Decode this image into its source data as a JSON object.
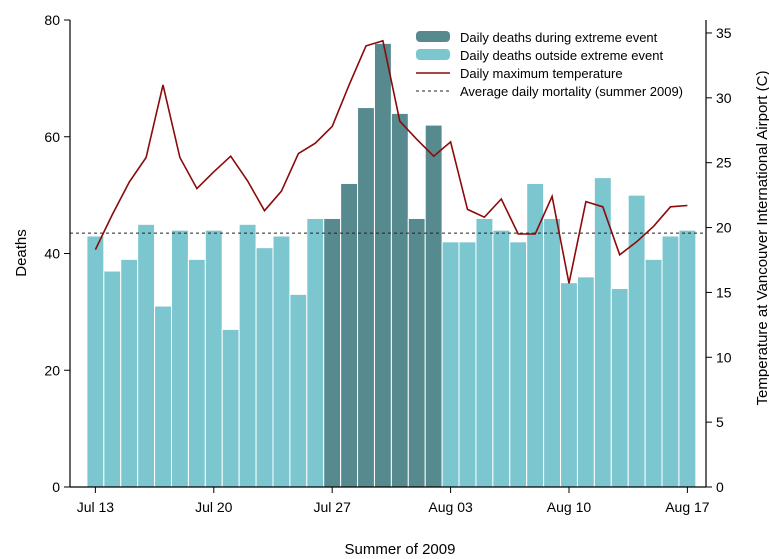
{
  "chart_data": {
    "type": "bar",
    "xlabel": "Summer of 2009",
    "ylabel": "Deaths",
    "y2label": "Temperature at Vancouver International Airport (C)",
    "ylim": [
      0,
      80
    ],
    "y2lim": [
      0,
      36
    ],
    "yticks": [
      0,
      20,
      40,
      60,
      80
    ],
    "y2ticks": [
      0,
      5,
      10,
      15,
      20,
      25,
      30,
      35
    ],
    "x_tick_labels": [
      "Jul 13",
      "Jul 20",
      "Jul 27",
      "Aug 03",
      "Aug 10",
      "Aug 17"
    ],
    "x_tick_days": [
      0,
      7,
      14,
      21,
      28,
      35
    ],
    "legend_position": "top-right",
    "legend": [
      {
        "label": "Daily deaths during extreme event",
        "kind": "bar",
        "color": "#578a8e"
      },
      {
        "label": "Daily deaths outside extreme event",
        "kind": "bar",
        "color": "#7cc6d0"
      },
      {
        "label": "Daily maximum temperature",
        "kind": "line",
        "color": "#8b0a0a"
      },
      {
        "label": "Average daily mortality (summer 2009)",
        "kind": "dashed",
        "color": "#222222"
      }
    ],
    "dates": [
      "Jul 13",
      "Jul 14",
      "Jul 15",
      "Jul 16",
      "Jul 17",
      "Jul 18",
      "Jul 19",
      "Jul 20",
      "Jul 21",
      "Jul 22",
      "Jul 23",
      "Jul 24",
      "Jul 25",
      "Jul 26",
      "Jul 27",
      "Jul 28",
      "Jul 29",
      "Jul 30",
      "Jul 31",
      "Aug 01",
      "Aug 02",
      "Aug 03",
      "Aug 04",
      "Aug 05",
      "Aug 06",
      "Aug 07",
      "Aug 08",
      "Aug 09",
      "Aug 10",
      "Aug 11",
      "Aug 12",
      "Aug 13",
      "Aug 14",
      "Aug 15",
      "Aug 16",
      "Aug 17"
    ],
    "deaths": [
      43,
      37,
      39,
      45,
      31,
      44,
      39,
      44,
      27,
      45,
      41,
      43,
      33,
      46,
      46,
      52,
      65,
      76,
      64,
      46,
      62,
      42,
      42,
      46,
      44,
      42,
      52,
      46,
      35,
      36,
      53,
      34,
      50,
      39,
      43,
      44
    ],
    "extreme_event": [
      false,
      false,
      false,
      false,
      false,
      false,
      false,
      false,
      false,
      false,
      false,
      false,
      false,
      false,
      true,
      true,
      true,
      true,
      true,
      true,
      true,
      false,
      false,
      false,
      false,
      false,
      false,
      false,
      false,
      false,
      false,
      false,
      false,
      false,
      false,
      false
    ],
    "temperature": [
      18.3,
      21.0,
      23.5,
      25.4,
      31.0,
      25.4,
      23.0,
      24.3,
      25.5,
      23.6,
      21.3,
      22.8,
      25.7,
      26.5,
      27.8,
      31.0,
      34.0,
      34.4,
      28.2,
      26.8,
      25.5,
      26.6,
      21.4,
      20.8,
      22.2,
      19.5,
      19.5,
      22.4,
      15.7,
      22.0,
      21.6,
      17.9,
      18.9,
      20.1,
      21.6,
      21.7
    ],
    "average_daily_mortality": 43.5,
    "colors": {
      "extreme": "#578a8e",
      "normal": "#7cc6d0",
      "temperature_line": "#8b0a0a",
      "average_line": "#222222"
    }
  }
}
